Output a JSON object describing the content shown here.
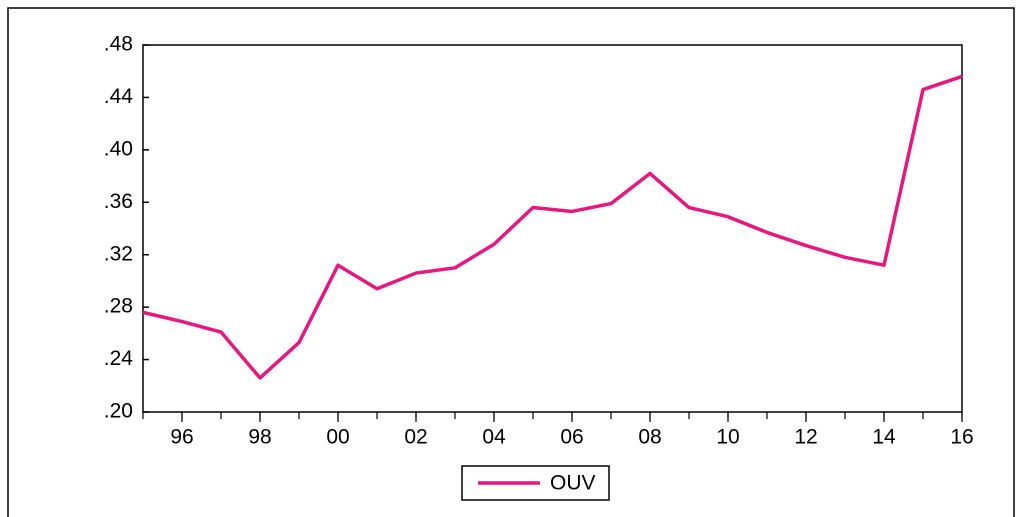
{
  "chart_data": {
    "type": "line",
    "x": [
      1995,
      1996,
      1997,
      1998,
      1999,
      2000,
      2001,
      2002,
      2003,
      2004,
      2005,
      2006,
      2007,
      2008,
      2009,
      2010,
      2011,
      2012,
      2013,
      2014,
      2015,
      2016
    ],
    "series": [
      {
        "name": "OUV",
        "color": "#e8177f",
        "values": [
          0.276,
          0.269,
          0.261,
          0.226,
          0.253,
          0.312,
          0.294,
          0.306,
          0.31,
          0.328,
          0.356,
          0.353,
          0.359,
          0.382,
          0.356,
          0.349,
          0.337,
          0.327,
          0.318,
          0.312,
          0.446,
          0.456
        ]
      }
    ],
    "xlim": [
      1995,
      2016
    ],
    "xticks": [
      {
        "value": 1996,
        "label": "96"
      },
      {
        "value": 1998,
        "label": "98"
      },
      {
        "value": 2000,
        "label": "00"
      },
      {
        "value": 2002,
        "label": "02"
      },
      {
        "value": 2004,
        "label": "04"
      },
      {
        "value": 2006,
        "label": "06"
      },
      {
        "value": 2008,
        "label": "08"
      },
      {
        "value": 2010,
        "label": "10"
      },
      {
        "value": 2012,
        "label": "12"
      },
      {
        "value": 2014,
        "label": "14"
      },
      {
        "value": 2016,
        "label": "16"
      }
    ],
    "ylim": [
      0.2,
      0.48
    ],
    "yticks": [
      {
        "value": 0.2,
        "label": ".20"
      },
      {
        "value": 0.24,
        "label": ".24"
      },
      {
        "value": 0.28,
        "label": ".28"
      },
      {
        "value": 0.32,
        "label": ".32"
      },
      {
        "value": 0.36,
        "label": ".36"
      },
      {
        "value": 0.4,
        "label": ".40"
      },
      {
        "value": 0.44,
        "label": ".44"
      },
      {
        "value": 0.48,
        "label": ".48"
      }
    ],
    "legend": "bottom"
  }
}
